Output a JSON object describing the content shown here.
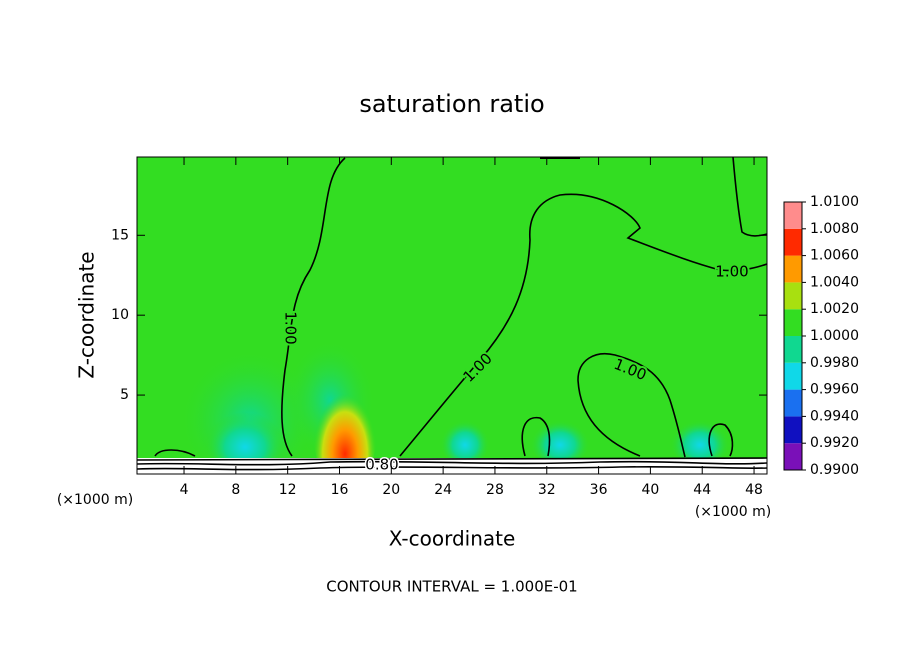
{
  "chart_data": {
    "type": "contour",
    "title": "saturation ratio",
    "x_label": "X-coordinate",
    "y_label": "Z-coordinate",
    "x_unit": "(×1000 m)",
    "footer": "CONTOUR INTERVAL = 1.000E-01",
    "xlim": [
      0.37,
      49.0
    ],
    "ylim": [
      0.06,
      19.9
    ],
    "xticks": [
      4,
      8,
      12,
      16,
      20,
      24,
      28,
      32,
      36,
      40,
      44,
      48
    ],
    "yticks": [
      5,
      10,
      15
    ],
    "contour_labels": [
      "1.00",
      "1.00",
      "1.00",
      "1.00",
      "0.80"
    ],
    "colorbar": {
      "levels": [
        {
          "value": 0.99,
          "label": "0.9900"
        },
        {
          "value": 0.992,
          "label": "0.9920"
        },
        {
          "value": 0.994,
          "label": "0.9940"
        },
        {
          "value": 0.996,
          "label": "0.9960"
        },
        {
          "value": 0.998,
          "label": "0.9980"
        },
        {
          "value": 1.0,
          "label": "1.0000"
        },
        {
          "value": 1.002,
          "label": "1.0020"
        },
        {
          "value": 1.004,
          "label": "1.0040"
        },
        {
          "value": 1.006,
          "label": "1.0060"
        },
        {
          "value": 1.008,
          "label": "1.0080"
        },
        {
          "value": 1.01,
          "label": "1.0100"
        }
      ],
      "colors": [
        "#7a10b8",
        "#1010c0",
        "#1a70f0",
        "#10d8e8",
        "#10d890",
        "#33dd22",
        "#a8e010",
        "#ff9a00",
        "#ff2a00",
        "#ff8c8c"
      ]
    }
  }
}
